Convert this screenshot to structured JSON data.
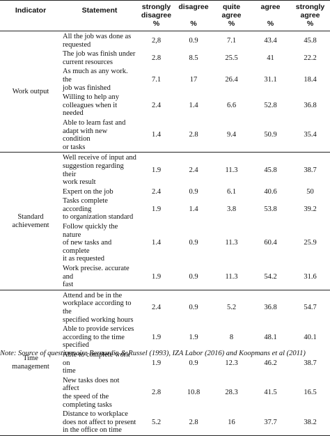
{
  "headers": {
    "indicator": "Indicator",
    "statement": "Statement",
    "strongly_disagree": [
      "strongly",
      "disagree",
      "%"
    ],
    "disagree": [
      "disagree",
      "%"
    ],
    "quite_agree": [
      "quite",
      "agree",
      "%"
    ],
    "agree": [
      "agree",
      "%"
    ],
    "strongly_agree": [
      "strongly",
      "agree",
      "%"
    ]
  },
  "groups": [
    {
      "indicator": [
        "Work output"
      ],
      "rows": [
        {
          "statement": [
            "All the job was done as",
            "requested"
          ],
          "values": [
            "2,8",
            "0.9",
            "7.1",
            "43.4",
            "45.8"
          ]
        },
        {
          "statement": [
            "The job was finish under",
            "current  resources"
          ],
          "values": [
            "2.8",
            "8.5",
            "25.5",
            "41",
            "22.2"
          ]
        },
        {
          "statement": [
            "As much as any work. the",
            "job was finished"
          ],
          "values": [
            "7.1",
            "17",
            "26.4",
            "31.1",
            "18.4"
          ]
        },
        {
          "statement": [
            "Willing to help  any",
            "colleagues when it needed"
          ],
          "values": [
            "2.4",
            "1.4",
            "6.6",
            "52.8",
            "36.8"
          ]
        },
        {
          "statement": [
            "Able to learn fast and",
            "adapt with new condition",
            "or tasks"
          ],
          "values": [
            "1.4",
            "2.8",
            "9.4",
            "50.9",
            "35.4"
          ]
        }
      ]
    },
    {
      "indicator": [
        "Standard",
        "achievement"
      ],
      "rows": [
        {
          "statement": [
            "Well receive of input and",
            "suggestion regarding their",
            "work result"
          ],
          "values": [
            "1.9",
            "2.4",
            "11.3",
            "45.8",
            "38.7"
          ]
        },
        {
          "statement": [
            "Expert on the job"
          ],
          "values": [
            "2.4",
            "0.9",
            "6.1",
            "40.6",
            "50"
          ]
        },
        {
          "statement": [
            "Tasks complete according",
            "to organization standard"
          ],
          "values": [
            "1.9",
            "1.4",
            "3.8",
            "53.8",
            "39.2"
          ]
        },
        {
          "statement": [
            "Follow quickly the nature",
            "of new tasks and complete",
            "it as requested"
          ],
          "values": [
            "1.4",
            "0.9",
            "11.3",
            "60.4",
            "25.9"
          ]
        },
        {
          "statement": [
            "Work precise. accurate and",
            "fast"
          ],
          "values": [
            "1.9",
            "0.9",
            "11.3",
            "54.2",
            "31.6"
          ]
        }
      ]
    },
    {
      "indicator": [
        "Time",
        "management"
      ],
      "rows": [
        {
          "statement": [
            "Attend and be in the",
            "workplace according to the",
            "specified working hours"
          ],
          "values": [
            "2.4",
            "0.9",
            "5.2",
            "36.8",
            "54.7"
          ]
        },
        {
          "statement": [
            "Able to provide services",
            "according to the time",
            "specified"
          ],
          "values": [
            "1.9",
            "1.9",
            "8",
            "48.1",
            "40.1"
          ]
        },
        {
          "statement": [
            "Able to complete work on",
            "time"
          ],
          "values": [
            "1.9",
            "0.9",
            "12.3",
            "46.2",
            "38.7"
          ]
        },
        {
          "statement": [
            "New tasks does not affect",
            "the speed of the",
            "completing tasks"
          ],
          "values": [
            "2.8",
            "10.8",
            "28.3",
            "41.5",
            "16.5"
          ]
        },
        {
          "statement": [
            "Distance to workplace",
            "does not affect to present",
            "in the office on time"
          ],
          "values": [
            "5.2",
            "2.8",
            "16",
            "37.7",
            "38.2"
          ]
        }
      ]
    }
  ],
  "note": "Note: Source of questionnaire Bernardin & Russel (1993), IZA Labor (2016) and Koopmans et al (2011)"
}
